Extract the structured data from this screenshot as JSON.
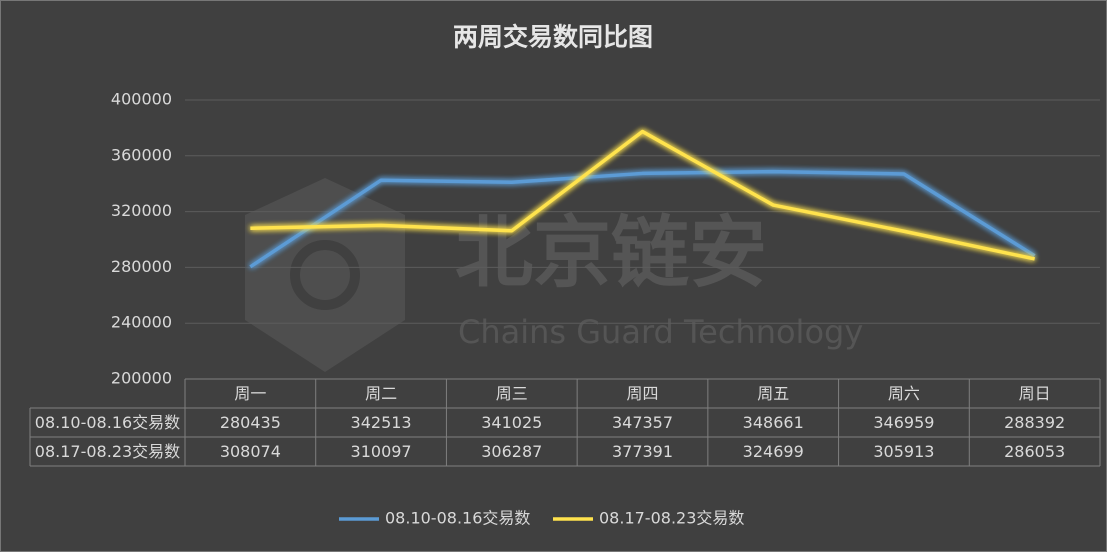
{
  "chart_data": {
    "type": "line",
    "title": "两周交易数同比图",
    "watermark": {
      "brand": "北京链安",
      "subtitle": "Chains Guard Technology"
    },
    "categories": [
      "周一",
      "周二",
      "周三",
      "周四",
      "周五",
      "周六",
      "周日"
    ],
    "series": [
      {
        "name": "08.10-08.16交易数",
        "color": "#5b9bd5",
        "values": [
          280435,
          342513,
          341025,
          347357,
          348661,
          346959,
          288392
        ]
      },
      {
        "name": "08.17-08.23交易数",
        "color": "#ffe34d",
        "values": [
          308074,
          310097,
          306287,
          377391,
          324699,
          305913,
          286053
        ]
      }
    ],
    "ylim": [
      200000,
      400000
    ],
    "yticks": [
      200000,
      240000,
      280000,
      320000,
      360000,
      400000
    ],
    "grid": true,
    "legend": "bottom",
    "data_table": true
  }
}
